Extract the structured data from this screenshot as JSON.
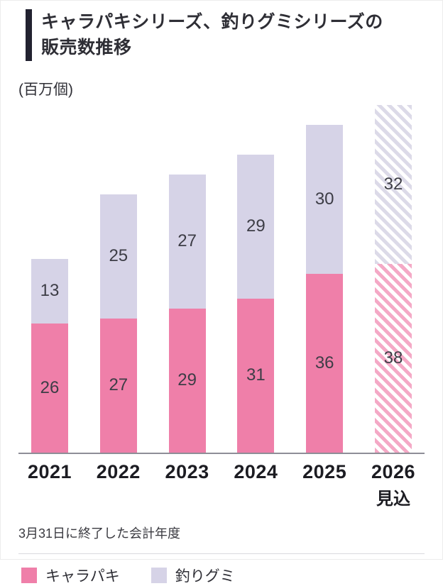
{
  "header": {
    "title_line1": "キャラパキシリーズ、釣りグミシリーズの",
    "title_line2": "販売数推移"
  },
  "chart": {
    "unit_label": "(百万個)",
    "footnote": "3月31日に終了した会計年度"
  },
  "legend": {
    "items": [
      {
        "label": "キャラパキ",
        "color": "#ef7fa9"
      },
      {
        "label": "釣りグミ",
        "color": "#d6d3e7"
      }
    ]
  },
  "chart_data": {
    "type": "bar",
    "stacked": true,
    "title": "キャラパキシリーズ、釣りグミシリーズの販売数推移",
    "ylabel": "百万個",
    "xlabel": "",
    "categories": [
      "2021",
      "2022",
      "2023",
      "2024",
      "2025",
      "2026"
    ],
    "category_sublabels": [
      "",
      "",
      "",
      "",
      "",
      "見込"
    ],
    "series": [
      {
        "name": "キャラパキ",
        "color": "#ef7fa9",
        "values": [
          26,
          27,
          29,
          31,
          36,
          38
        ]
      },
      {
        "name": "釣りグミ",
        "color": "#d6d3e7",
        "values": [
          13,
          25,
          27,
          29,
          30,
          32
        ]
      }
    ],
    "totals": [
      39,
      52,
      56,
      60,
      66,
      70
    ],
    "forecast_index": 5,
    "forecast_style": "diagonal-hatch",
    "ylim": [
      0,
      70
    ],
    "grid": false,
    "legend_position": "bottom",
    "value_labels": "inside-segments"
  },
  "colors": {
    "accent_bar": "#222230",
    "axis_line": "#8e8e97",
    "value_text": "#3d3d46"
  }
}
